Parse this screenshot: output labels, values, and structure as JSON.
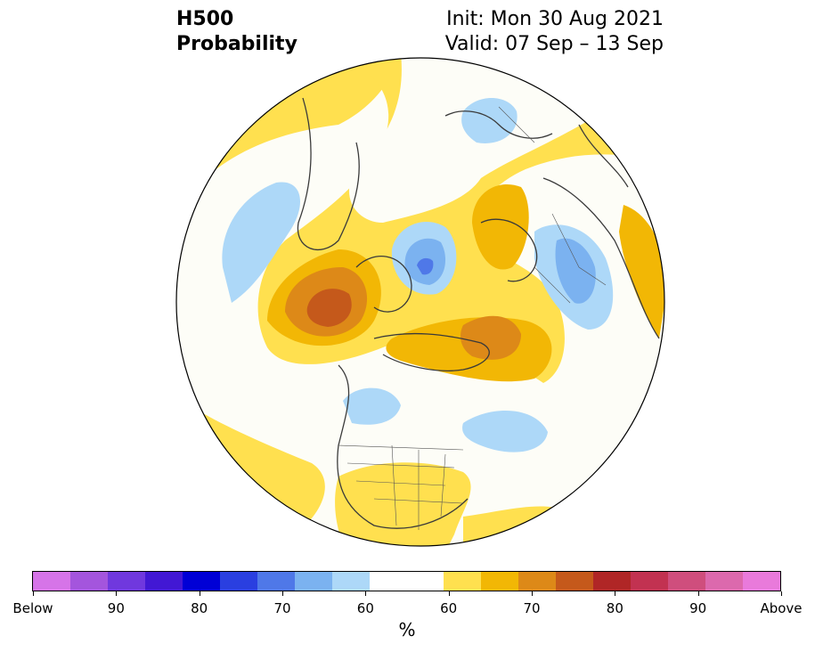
{
  "header": {
    "title_line1": "H500",
    "title_line2": "Probability",
    "init": "Init: Mon 30 Aug 2021",
    "valid": "Valid: 07 Sep – 13 Sep"
  },
  "map": {
    "projection": "north-polar-stereographic",
    "shading": "500-hPa height tercile probability",
    "features": [
      "continents",
      "country-borders",
      "us-state-borders"
    ]
  },
  "colorbar": {
    "colors": [
      "#d674e8",
      "#a455dd",
      "#7038de",
      "#4218d4",
      "#0000d6",
      "#2a3fe0",
      "#4f78e8",
      "#7bb2f0",
      "#add8f8",
      "#ffffff",
      "#ffffff",
      "#ffe04f",
      "#f2b705",
      "#dd8918",
      "#c5591b",
      "#b02626",
      "#c23251",
      "#cf4e7d",
      "#dc69ad",
      "#e97adb"
    ],
    "labels": [
      "Below",
      "90",
      "80",
      "70",
      "60",
      "60",
      "70",
      "80",
      "90",
      "Above"
    ],
    "unit": "%"
  }
}
